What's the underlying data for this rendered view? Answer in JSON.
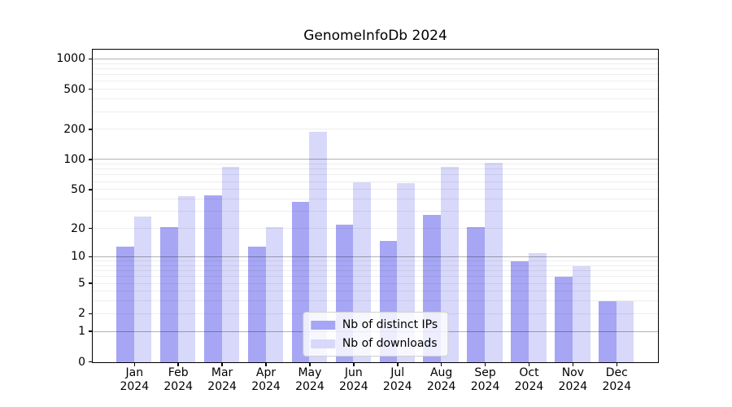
{
  "chart_data": {
    "type": "bar",
    "title": "GenomeInfoDb 2024",
    "categories": [
      "Jan",
      "Feb",
      "Mar",
      "Apr",
      "May",
      "Jun",
      "Jul",
      "Aug",
      "Sep",
      "Oct",
      "Nov",
      "Dec"
    ],
    "category_year": "2024",
    "series": [
      {
        "name": "Nb of distinct IPs",
        "color": "#a6a6f5",
        "values": [
          13,
          21,
          44,
          13,
          38,
          22,
          15,
          28,
          21,
          9,
          6,
          3
        ]
      },
      {
        "name": "Nb of downloads",
        "color": "#d8d8fa",
        "values": [
          27,
          43,
          86,
          21,
          190,
          60,
          58,
          86,
          94,
          11,
          8,
          3
        ]
      }
    ],
    "yscale": "log1p",
    "ylim": [
      0,
      1300
    ],
    "yticks": [
      0,
      1,
      2,
      5,
      10,
      20,
      50,
      100,
      200,
      500,
      1000
    ],
    "minor_grid_values": [
      2,
      3,
      4,
      5,
      6,
      7,
      8,
      9,
      20,
      30,
      40,
      50,
      60,
      70,
      80,
      90,
      200,
      300,
      400,
      500,
      600,
      700,
      800,
      900
    ],
    "major_grid_values": [
      1,
      10,
      100,
      1000
    ],
    "grid": "horizontal major+minor",
    "legend_position": "lower center"
  },
  "colors": {
    "background": "#ffffff",
    "bar_distinct_ips": "#a6a6f5",
    "bar_downloads": "#d8d8fa",
    "spine": "#000000",
    "major_grid_on_white": "#b3b3b3",
    "minor_grid_on_white": "#ededed"
  }
}
